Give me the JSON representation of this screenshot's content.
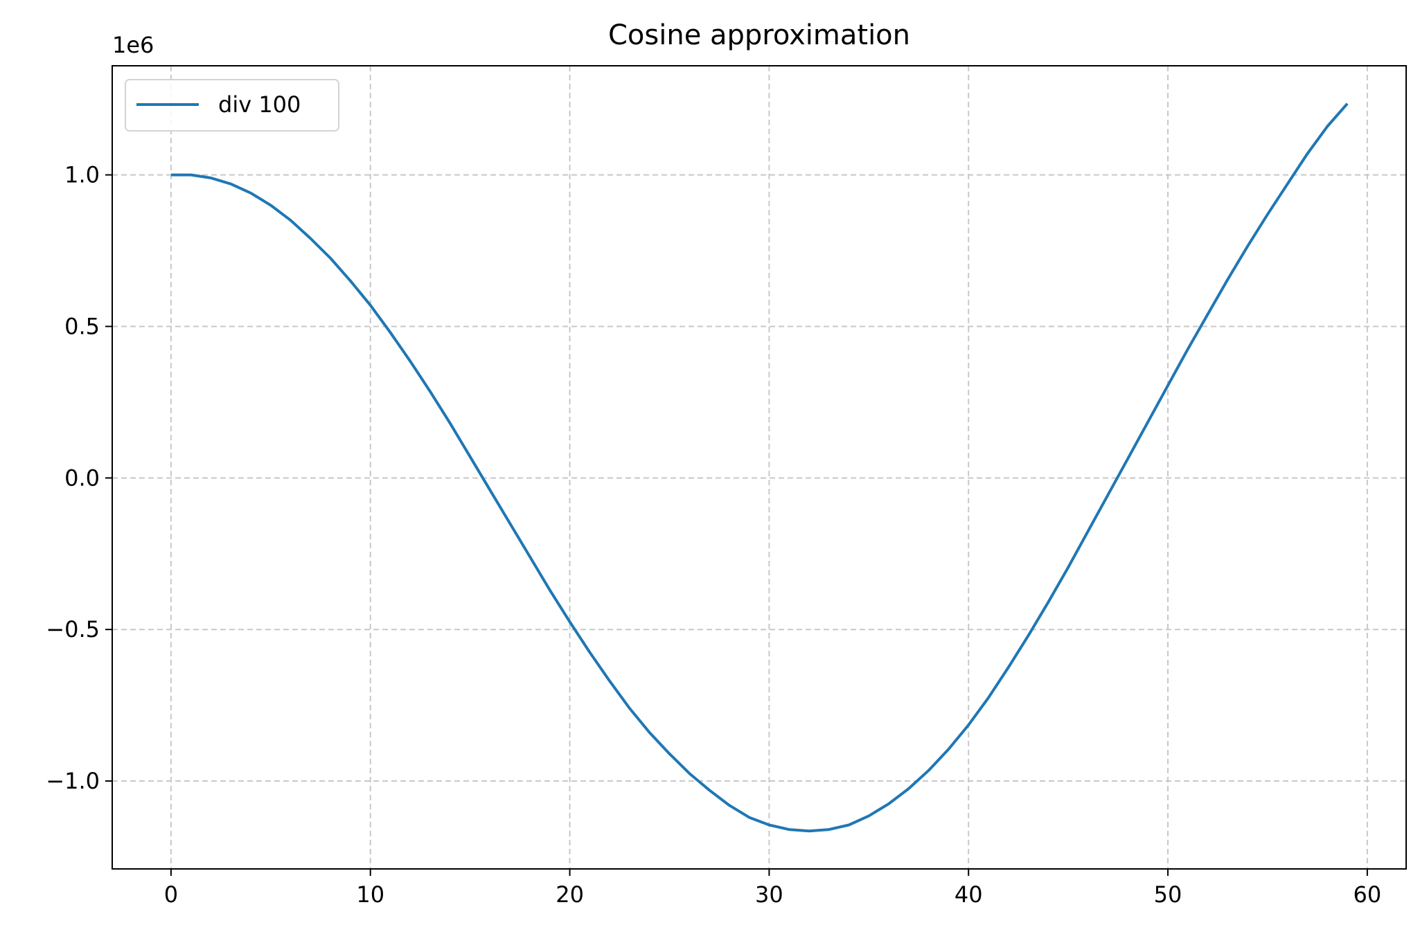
{
  "chart_data": {
    "type": "line",
    "title": "Cosine approximation",
    "xlabel": "",
    "ylabel": "",
    "y_offset_label": "1e6",
    "xlim": [
      -2.95,
      61.95
    ],
    "ylim": [
      -1.29,
      1.36
    ],
    "x_ticks": [
      0,
      10,
      20,
      30,
      40,
      50,
      60
    ],
    "x_tick_labels": [
      "0",
      "10",
      "20",
      "30",
      "40",
      "50",
      "60"
    ],
    "y_ticks": [
      -1.0,
      -0.5,
      0.0,
      0.5,
      1.0
    ],
    "y_tick_labels": [
      "−1.0",
      "−0.5",
      "0.0",
      "0.5",
      "1.0"
    ],
    "grid": true,
    "legend": {
      "position": "top-left"
    },
    "series": [
      {
        "name": "div 100",
        "color": "#1f77b4",
        "x": [
          0,
          1,
          2,
          3,
          4,
          5,
          6,
          7,
          8,
          9,
          10,
          11,
          12,
          13,
          14,
          15,
          16,
          17,
          18,
          19,
          20,
          21,
          22,
          23,
          24,
          25,
          26,
          27,
          28,
          29,
          30,
          31,
          32,
          33,
          34,
          35,
          36,
          37,
          38,
          39,
          40,
          41,
          42,
          43,
          44,
          45,
          46,
          47,
          48,
          49,
          50,
          51,
          52,
          53,
          54,
          55,
          56,
          57,
          58,
          59
        ],
        "y": [
          1.0,
          1.0,
          0.99,
          0.97,
          0.94,
          0.9,
          0.85,
          0.79,
          0.725,
          0.65,
          0.57,
          0.48,
          0.385,
          0.285,
          0.18,
          0.07,
          -0.04,
          -0.15,
          -0.26,
          -0.37,
          -0.475,
          -0.575,
          -0.67,
          -0.76,
          -0.84,
          -0.91,
          -0.975,
          -1.03,
          -1.08,
          -1.12,
          -1.145,
          -1.16,
          -1.165,
          -1.16,
          -1.145,
          -1.115,
          -1.075,
          -1.025,
          -0.965,
          -0.895,
          -0.815,
          -0.725,
          -0.625,
          -0.52,
          -0.41,
          -0.295,
          -0.175,
          -0.055,
          0.065,
          0.185,
          0.305,
          0.425,
          0.54,
          0.655,
          0.765,
          0.87,
          0.97,
          1.07,
          1.16,
          1.235
        ]
      }
    ]
  }
}
